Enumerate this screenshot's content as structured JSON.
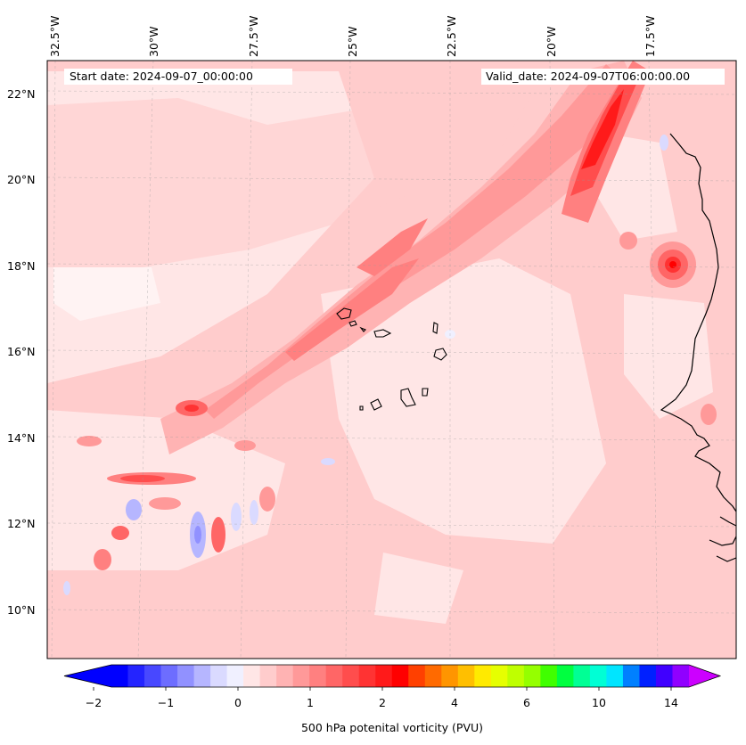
{
  "header": {
    "start_date": "Start date: 2024-09-07_00:00:00",
    "valid_date": "Valid_date: 2024-09-07T06:00:00.00"
  },
  "map": {
    "lon_labels": [
      "32.5°W",
      "30°W",
      "27.5°W",
      "25°W",
      "22.5°W",
      "20°W",
      "17.5°W"
    ],
    "lat_labels": [
      "22°N",
      "20°N",
      "18°N",
      "16°N",
      "14°N",
      "12°N",
      "10°N"
    ],
    "extent": {
      "lon_min": -33.0,
      "lon_max": -15.3,
      "lat_min": 9.0,
      "lat_max": 22.8
    },
    "gridlines": true
  },
  "colorbar": {
    "title": "500 hPa potenital vorticity (PVU)",
    "tick_labels": [
      "−2",
      "−1",
      "0",
      "1",
      "2",
      "4",
      "6",
      "10",
      "14"
    ],
    "colors": [
      "#0000ff",
      "#2424ff",
      "#4848ff",
      "#6d6dff",
      "#9191ff",
      "#b6b6ff",
      "#dadaff",
      "#f0f0ff",
      "#ffe6e6",
      "#ffcccc",
      "#ffb3b3",
      "#ff9999",
      "#ff8080",
      "#ff6666",
      "#ff4d4d",
      "#ff3333",
      "#ff1a1a",
      "#ff0000",
      "#ff4000",
      "#ff6a00",
      "#ff9500",
      "#ffbf00",
      "#ffea00",
      "#e6ff00",
      "#bfff00",
      "#95ff00",
      "#40ff00",
      "#00ff40",
      "#00ff95",
      "#00ffd5",
      "#00e5ff",
      "#0080ff",
      "#0020ff",
      "#4000ff",
      "#9000ff"
    ],
    "extend_low_color": "#0000ff",
    "extend_high_color": "#cc00ff"
  }
}
